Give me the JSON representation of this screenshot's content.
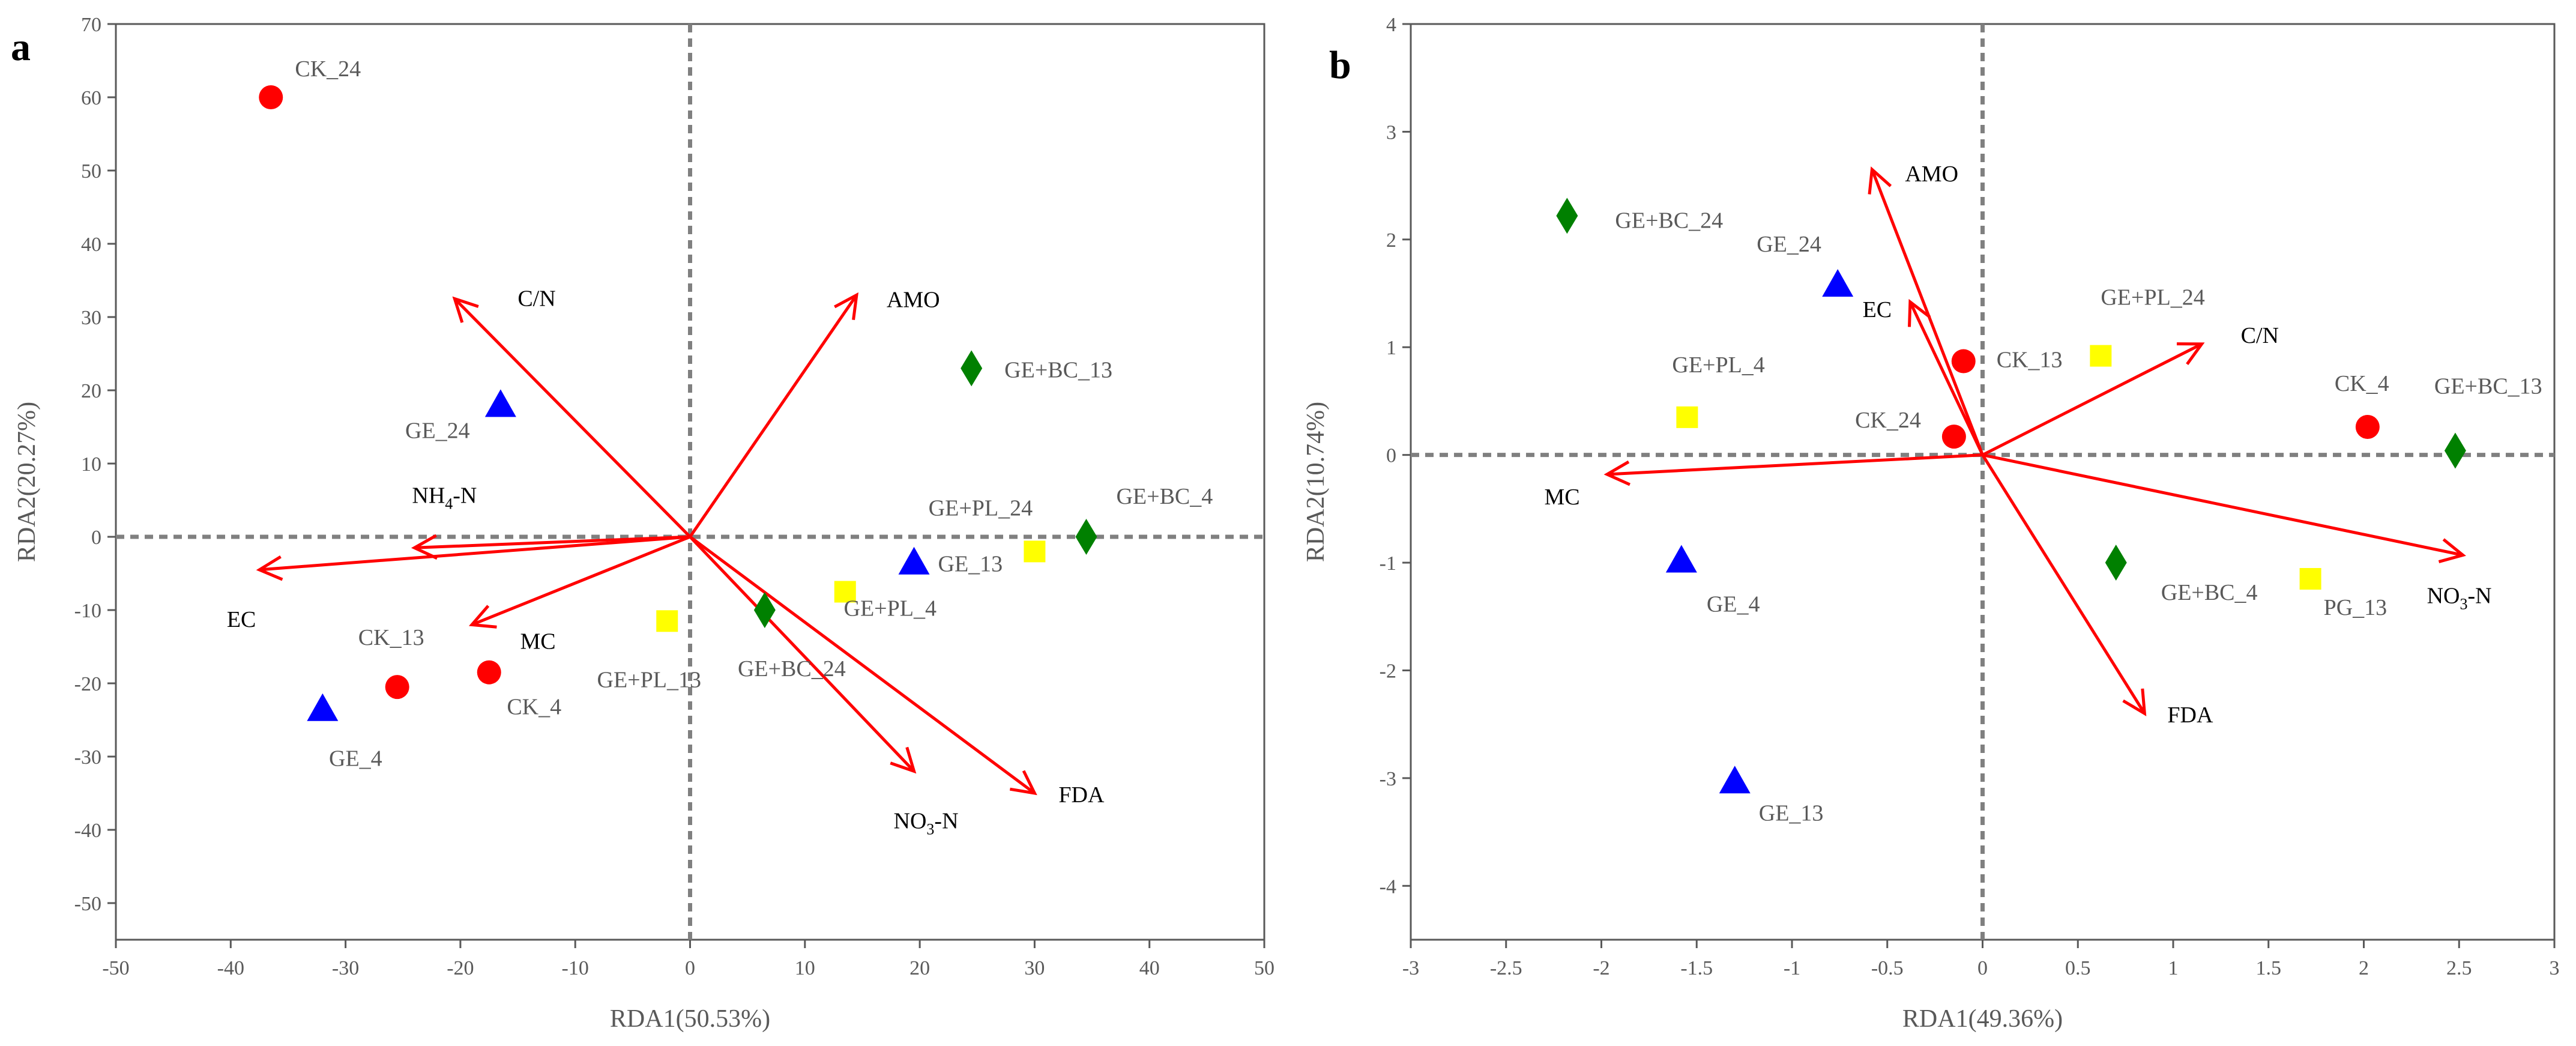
{
  "colors": {
    "arrow": "#ff0000",
    "CK": "#ff0000",
    "GE": "#0000ff",
    "GE+PL": "#ffff00",
    "GE+BC": "#008000",
    "dashed": "#808080",
    "axis": "#595959"
  },
  "chart_data": [
    {
      "type": "scatter",
      "panel_letter": "a",
      "xlabel": "RDA1(50.53%)",
      "ylabel": "RDA2(20.27%)",
      "xlim": [
        -50,
        50
      ],
      "ylim": [
        -55,
        70
      ],
      "xticks": [
        "-50",
        "-40",
        "-30",
        "-20",
        "-10",
        "0",
        "10",
        "20",
        "30",
        "40",
        "50"
      ],
      "yticks": [
        "-50",
        "-40",
        "-30",
        "-20",
        "-10",
        "0",
        "10",
        "20",
        "30",
        "40",
        "50",
        "60",
        "70"
      ],
      "grid": false,
      "vectors": [
        {
          "label": "AMO",
          "x": 14.5,
          "y": 33
        },
        {
          "label": "C/N",
          "x": -20.5,
          "y": 32.5
        },
        {
          "label": "NH4-N",
          "x": -24,
          "y": -1.5
        },
        {
          "label": "EC",
          "x": -37.5,
          "y": -4.5
        },
        {
          "label": "MC",
          "x": -19,
          "y": -12
        },
        {
          "label": "NO3-N",
          "x": 19.5,
          "y": -32
        },
        {
          "label": "FDA",
          "x": 30,
          "y": -35
        }
      ],
      "points": [
        {
          "label": "CK_24",
          "group": "CK",
          "x": -36.5,
          "y": 60
        },
        {
          "label": "CK_13",
          "group": "CK",
          "x": -25.5,
          "y": -20.5
        },
        {
          "label": "CK_4",
          "group": "CK",
          "x": -17.5,
          "y": -18.5
        },
        {
          "label": "GE_24",
          "group": "GE",
          "x": -16.5,
          "y": 18
        },
        {
          "label": "GE_4",
          "group": "GE",
          "x": -32,
          "y": -23.5
        },
        {
          "label": "GE_13",
          "group": "GE",
          "x": 19.5,
          "y": -3.5
        },
        {
          "label": "GE+PL_13",
          "group": "GE+PL",
          "x": -2,
          "y": -11.5
        },
        {
          "label": "GE+PL_4",
          "group": "GE+PL",
          "x": 13.5,
          "y": -7.5
        },
        {
          "label": "GE+PL_24",
          "group": "GE+PL",
          "x": 30,
          "y": -2
        },
        {
          "label": "GE+BC_24",
          "group": "GE+BC",
          "x": 6.5,
          "y": -10
        },
        {
          "label": "GE+BC_13",
          "group": "GE+BC",
          "x": 24.5,
          "y": 23
        },
        {
          "label": "GE+BC_4",
          "group": "GE+BC",
          "x": 34.5,
          "y": 0
        }
      ]
    },
    {
      "type": "scatter",
      "panel_letter": "b",
      "xlabel": "RDA1(49.36%)",
      "ylabel": "RDA2(10.74%)",
      "xlim": [
        -3,
        3
      ],
      "ylim": [
        -4.5,
        4
      ],
      "xticks": [
        "-3",
        "-2.5",
        "-2",
        "-1.5",
        "-1",
        "-0.5",
        "0",
        "0.5",
        "1",
        "1.5",
        "2",
        "2.5",
        "3"
      ],
      "yticks": [
        "-4",
        "-3",
        "-2",
        "-1",
        "0",
        "1",
        "2",
        "3",
        "4"
      ],
      "grid": false,
      "vectors": [
        {
          "label": "AMO",
          "x": -0.58,
          "y": 2.65
        },
        {
          "label": "EC",
          "x": -0.38,
          "y": 1.42
        },
        {
          "label": "C/N",
          "x": 1.15,
          "y": 1.03
        },
        {
          "label": "MC",
          "x": -1.97,
          "y": -0.18
        },
        {
          "label": "NO3-N",
          "x": 2.52,
          "y": -0.93
        },
        {
          "label": "FDA",
          "x": 0.85,
          "y": -2.4
        }
      ],
      "points": [
        {
          "label": "CK_13",
          "group": "CK",
          "x": -0.1,
          "y": 0.87
        },
        {
          "label": "CK_24",
          "group": "CK",
          "x": -0.15,
          "y": 0.17
        },
        {
          "label": "CK_4",
          "group": "CK",
          "x": 2.02,
          "y": 0.26
        },
        {
          "label": "GE_24",
          "group": "GE",
          "x": -0.76,
          "y": 1.58
        },
        {
          "label": "GE_4",
          "group": "GE",
          "x": -1.58,
          "y": -0.98
        },
        {
          "label": "GE_13",
          "group": "GE",
          "x": -1.3,
          "y": -3.03
        },
        {
          "label": "GE+PL_4",
          "group": "GE+PL",
          "x": -1.55,
          "y": 0.35
        },
        {
          "label": "GE+PL_24",
          "group": "GE+PL",
          "x": 0.62,
          "y": 0.92
        },
        {
          "label": "PG_13",
          "group": "GE+PL",
          "x": 1.72,
          "y": -1.15
        },
        {
          "label": "GE+BC_24",
          "group": "GE+BC",
          "x": -2.18,
          "y": 2.22
        },
        {
          "label": "GE+BC_13",
          "group": "GE+BC",
          "x": 2.48,
          "y": 0.04
        },
        {
          "label": "GE+BC_4",
          "group": "GE+BC",
          "x": 0.7,
          "y": -1.0
        }
      ]
    }
  ]
}
